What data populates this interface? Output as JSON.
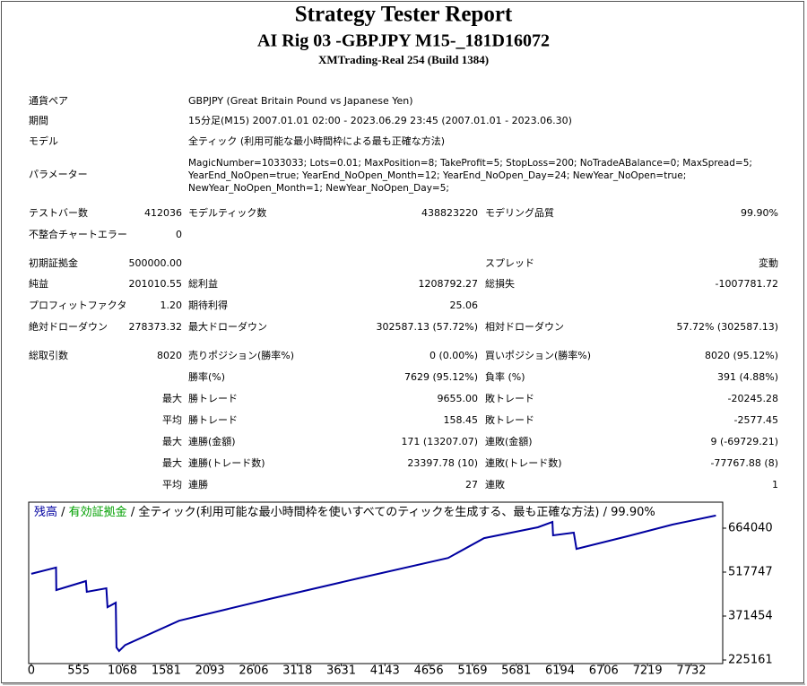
{
  "header": {
    "title": "Strategy Tester Report",
    "subtitle": "AI Rig 03 -GBPJPY M15-_181D16072",
    "server": "XMTrading-Real 254 (Build 1384)"
  },
  "info": [
    {
      "label": "通貨ペア",
      "value": "GBPJPY (Great Britain Pound vs Japanese Yen)"
    },
    {
      "label": "期間",
      "value": "15分足(M15) 2007.01.01 02:00 - 2023.06.29 23:45 (2007.01.01 - 2023.06.30)"
    },
    {
      "label": "モデル",
      "value": "全ティック (利用可能な最小時間枠による最も正確な方法)"
    }
  ],
  "parameters": {
    "label": "パラメーター",
    "lines": [
      "MagicNumber=1033033; Lots=0.01; MaxPosition=8; TakeProfit=5; StopLoss=200; NoTradeABalance=0; MaxSpread=5;",
      "YearEnd_NoOpen=true; YearEnd_NoOpen_Month=12; YearEnd_NoOpen_Day=24; NewYear_NoOpen=true;",
      "NewYear_NoOpen_Month=1; NewYear_NoOpen_Day=5;"
    ]
  },
  "stats": [
    [
      "テストバー数",
      "412036",
      "モデルティック数",
      "438823220",
      "モデリング品質",
      "99.90%"
    ],
    [
      "不整合チャートエラー",
      "0",
      null,
      null,
      null,
      null
    ],
    [
      "初期証拠金",
      "500000.00",
      null,
      null,
      "スプレッド",
      "変動"
    ],
    [
      "純益",
      "201010.55",
      "総利益",
      "1208792.27",
      "総損失",
      "-1007781.72"
    ],
    [
      "プロフィットファクタ",
      "1.20",
      "期待利得",
      "25.06",
      null,
      null
    ],
    [
      "絶対ドローダウン",
      "278373.32",
      "最大ドローダウン",
      "302587.13 (57.72%)",
      "相対ドローダウン",
      "57.72% (302587.13)"
    ],
    [
      "総取引数",
      "8020",
      "売りポジション(勝率%)",
      "0 (0.00%)",
      "買いポジション(勝率%)",
      "8020 (95.12%)"
    ],
    [
      null,
      null,
      "勝率(%)",
      "7629 (95.12%)",
      "負率 (%)",
      "391 (4.88%)"
    ],
    [
      null,
      "最大",
      "勝トレード",
      "9655.00",
      "敗トレード",
      "-20245.28"
    ],
    [
      null,
      "平均",
      "勝トレード",
      "158.45",
      "敗トレード",
      "-2577.45"
    ],
    [
      null,
      "最大",
      "連勝(金額)",
      "171 (13207.07)",
      "連敗(金額)",
      "9 (-69729.21)"
    ],
    [
      null,
      "最大",
      "連勝(トレード数)",
      "23397.78 (10)",
      "連敗(トレード数)",
      "-77767.88 (8)"
    ],
    [
      null,
      "平均",
      "連勝",
      "27",
      "連敗",
      "1"
    ]
  ],
  "chart_data": {
    "type": "line",
    "separator": " / ",
    "equity_label": "有効証拠金",
    "equity_color": "#00a000",
    "note": "全ティック(利用可能な最小時間枠を使いすべてのティックを生成する、最も正確な方法) / 99.90%",
    "x": [
      0,
      290,
      294,
      640,
      651,
      880,
      893,
      990,
      998,
      1029,
      1100,
      1733,
      2784,
      3834,
      4884,
      5305,
      5935,
      6105,
      6113,
      6355,
      6387,
      6985,
      7511,
      8020
    ],
    "series": [
      {
        "name": "残高",
        "color": "#0000a0",
        "values": [
          512000,
          533000,
          458000,
          488000,
          452000,
          464000,
          401000,
          416000,
          267000,
          255000,
          275000,
          356000,
          428000,
          497000,
          565000,
          631000,
          667000,
          685000,
          640000,
          649000,
          595000,
          637000,
          676000,
          706000
        ]
      }
    ],
    "xlim": [
      -30,
      8100
    ],
    "ylim": [
      213200,
      750600
    ],
    "xticks": [
      0,
      555,
      1068,
      1581,
      2093,
      2606,
      3118,
      3631,
      4143,
      4656,
      5169,
      5681,
      6194,
      6706,
      7219,
      7732
    ],
    "yticks": [
      225161,
      371454,
      517747,
      664040
    ]
  }
}
